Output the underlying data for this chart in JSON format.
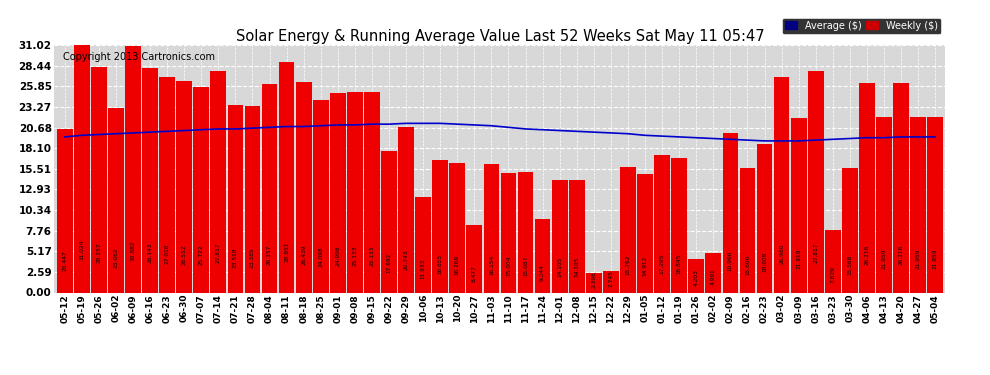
{
  "title": "Solar Energy & Running Average Value Last 52 Weeks Sat May 11 05:47",
  "copyright": "Copyright 2013 Cartronics.com",
  "bar_color": "#ee0000",
  "avg_line_color": "#0000cc",
  "background_color": "#ffffff",
  "plot_bg_color": "#d8d8d8",
  "grid_color": "#ffffff",
  "yticks": [
    0.0,
    2.59,
    5.17,
    7.76,
    10.34,
    12.93,
    15.51,
    18.1,
    20.68,
    23.27,
    25.85,
    28.44,
    31.02
  ],
  "legend_avg_bg": "#000080",
  "legend_weekly_bg": "#cc0000",
  "categories": [
    "05-12",
    "05-19",
    "05-26",
    "06-02",
    "06-09",
    "06-16",
    "06-23",
    "06-30",
    "07-07",
    "07-14",
    "07-21",
    "07-28",
    "08-04",
    "08-11",
    "08-18",
    "08-25",
    "09-01",
    "09-08",
    "09-15",
    "09-22",
    "09-29",
    "10-06",
    "10-13",
    "10-20",
    "10-27",
    "11-03",
    "11-10",
    "11-17",
    "11-24",
    "12-01",
    "12-08",
    "12-15",
    "12-22",
    "12-29",
    "01-05",
    "01-12",
    "01-19",
    "01-26",
    "02-02",
    "02-09",
    "02-16",
    "02-23",
    "03-02",
    "03-09",
    "03-16",
    "03-23",
    "03-30",
    "04-06",
    "04-13",
    "04-20",
    "04-27",
    "05-04"
  ],
  "weekly_values": [
    20.447,
    31.024,
    28.257,
    23.062,
    30.882,
    28.143,
    27.018,
    26.552,
    25.722,
    27.817,
    23.518,
    23.385,
    26.157,
    28.951,
    26.439,
    24.098,
    24.998,
    25.133,
    25.133,
    17.692,
    20.743,
    11.933,
    16.655,
    16.269,
    8.477,
    16.154,
    15.004,
    15.087,
    9.244,
    14.105,
    14.105,
    2.398,
    2.745,
    15.762,
    14.912,
    17.295,
    16.845,
    4.203,
    4.991,
    19.96,
    15.6,
    18.608,
    26.98,
    21.919,
    27.817,
    7.829,
    15.568,
    26.216,
    21.959,
    26.216,
    21.959,
    21.959
  ],
  "avg_values": [
    19.5,
    19.7,
    19.8,
    19.9,
    20.0,
    20.1,
    20.2,
    20.3,
    20.4,
    20.5,
    20.5,
    20.6,
    20.7,
    20.8,
    20.8,
    20.9,
    21.0,
    21.0,
    21.1,
    21.1,
    21.2,
    21.2,
    21.2,
    21.1,
    21.0,
    20.9,
    20.7,
    20.5,
    20.4,
    20.3,
    20.2,
    20.1,
    20.0,
    19.9,
    19.7,
    19.6,
    19.5,
    19.4,
    19.3,
    19.2,
    19.1,
    19.0,
    19.0,
    19.0,
    19.1,
    19.2,
    19.3,
    19.4,
    19.4,
    19.5,
    19.5,
    19.5
  ]
}
